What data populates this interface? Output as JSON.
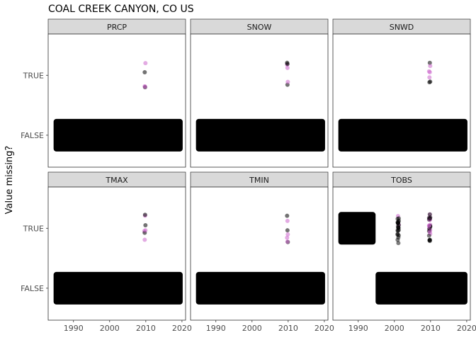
{
  "chart_data": {
    "type": "scatter",
    "title": "COAL CREEK CANYON, CO US",
    "ylabel": "Value missing?",
    "xlabel": "",
    "facets": [
      "PRCP",
      "SNOW",
      "SNWD",
      "TMAX",
      "TMIN",
      "TOBS"
    ],
    "y_categories": [
      "FALSE",
      "TRUE"
    ],
    "x_ticks": [
      1990,
      2000,
      2010,
      2020
    ],
    "xlim": [
      1983,
      2021
    ],
    "grid": false,
    "colors": {
      "point": "#000000",
      "highlight": "#cc66cc",
      "strip": "#d9d9d9",
      "panel_border": "#333333"
    },
    "panels": [
      {
        "name": "PRCP",
        "false_ranges": [
          [
            1984.5,
            2020.2
          ]
        ],
        "true_ranges": [],
        "true_points": [
          2009.7,
          2009.8,
          2009.9,
          2009.7,
          2009.8
        ]
      },
      {
        "name": "SNOW",
        "false_ranges": [
          [
            1984.5,
            2020.2
          ]
        ],
        "true_ranges": [],
        "true_points": [
          2009.7,
          2009.8,
          2009.9,
          2009.7,
          2009.8,
          2009.8
        ]
      },
      {
        "name": "SNWD",
        "false_ranges": [
          [
            1984.5,
            2020.2
          ]
        ],
        "true_ranges": [],
        "true_points": [
          2009.6,
          2009.7,
          2009.8,
          2009.9,
          2009.7,
          2009.8,
          2009.9
        ]
      },
      {
        "name": "TMAX",
        "false_ranges": [
          [
            1984.5,
            2020.2
          ]
        ],
        "true_ranges": [],
        "true_points": [
          2009.6,
          2009.7,
          2009.8,
          2009.9,
          2009.7,
          2009.8,
          2009.9
        ]
      },
      {
        "name": "TMIN",
        "false_ranges": [
          [
            1984.5,
            2020.2
          ]
        ],
        "true_ranges": [],
        "true_points": [
          2009.7,
          2009.8,
          2009.9,
          2009.7,
          2009.8,
          2009.9,
          2009.8
        ]
      },
      {
        "name": "TOBS",
        "false_ranges": [
          [
            1994.8,
            2020.2
          ]
        ],
        "true_ranges": [
          [
            1984.5,
            1994.8
          ]
        ],
        "true_points": [
          2001.0,
          2001.1,
          2001.2,
          2000.9,
          2009.7,
          2009.8,
          2009.9,
          2009.6,
          2009.8
        ]
      }
    ]
  }
}
